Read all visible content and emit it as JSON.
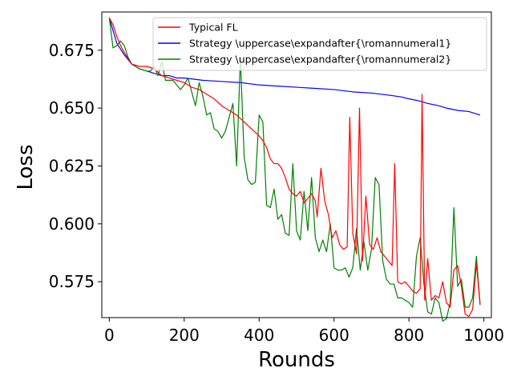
{
  "chart_data": {
    "type": "line",
    "xlabel": "Rounds",
    "ylabel": "Loss",
    "xlim": [
      -20,
      1020
    ],
    "ylim": [
      0.5595,
      0.6915
    ],
    "xticks": [
      0,
      200,
      400,
      600,
      800,
      1000
    ],
    "xtick_labels": [
      "0",
      "200",
      "400",
      "600",
      "800",
      "1000"
    ],
    "yticks": [
      0.575,
      0.6,
      0.625,
      0.65,
      0.675
    ],
    "ytick_labels": [
      "0.575",
      "0.600",
      "0.625",
      "0.650",
      "0.675"
    ],
    "grid": false,
    "legend_position": "top-right",
    "series": [
      {
        "name": "Typical FL",
        "color": "#ff0000",
        "points": [
          [
            0,
            0.689
          ],
          [
            10,
            0.686
          ],
          [
            20,
            0.681
          ],
          [
            30,
            0.677
          ],
          [
            40,
            0.674
          ],
          [
            60,
            0.669
          ],
          [
            80,
            0.668
          ],
          [
            100,
            0.668
          ],
          [
            120,
            0.667
          ],
          [
            140,
            0.664
          ],
          [
            160,
            0.663
          ],
          [
            180,
            0.662
          ],
          [
            200,
            0.661
          ],
          [
            220,
            0.659
          ],
          [
            240,
            0.658
          ],
          [
            260,
            0.656
          ],
          [
            280,
            0.654
          ],
          [
            300,
            0.651
          ],
          [
            320,
            0.649
          ],
          [
            340,
            0.647
          ],
          [
            360,
            0.644
          ],
          [
            380,
            0.641
          ],
          [
            400,
            0.638
          ],
          [
            410,
            0.636
          ],
          [
            420,
            0.633
          ],
          [
            430,
            0.628
          ],
          [
            440,
            0.626
          ],
          [
            450,
            0.626
          ],
          [
            460,
            0.624
          ],
          [
            470,
            0.62
          ],
          [
            480,
            0.615
          ],
          [
            490,
            0.613
          ],
          [
            500,
            0.612
          ],
          [
            510,
            0.614
          ],
          [
            520,
            0.609
          ],
          [
            530,
            0.611
          ],
          [
            540,
            0.613
          ],
          [
            550,
            0.61
          ],
          [
            555,
            0.603
          ],
          [
            565,
            0.624
          ],
          [
            575,
            0.61
          ],
          [
            585,
            0.604
          ],
          [
            595,
            0.594
          ],
          [
            605,
            0.597
          ],
          [
            615,
            0.591
          ],
          [
            625,
            0.589
          ],
          [
            635,
            0.59
          ],
          [
            642,
            0.646
          ],
          [
            650,
            0.596
          ],
          [
            660,
            0.587
          ],
          [
            668,
            0.65
          ],
          [
            676,
            0.584
          ],
          [
            685,
            0.612
          ],
          [
            695,
            0.591
          ],
          [
            705,
            0.589
          ],
          [
            715,
            0.594
          ],
          [
            725,
            0.588
          ],
          [
            735,
            0.586
          ],
          [
            745,
            0.584
          ],
          [
            755,
            0.582
          ],
          [
            762,
            0.626
          ],
          [
            770,
            0.575
          ],
          [
            780,
            0.574
          ],
          [
            790,
            0.575
          ],
          [
            800,
            0.573
          ],
          [
            810,
            0.571
          ],
          [
            820,
            0.57
          ],
          [
            830,
            0.572
          ],
          [
            835,
            0.656
          ],
          [
            842,
            0.567
          ],
          [
            850,
            0.585
          ],
          [
            860,
            0.567
          ],
          [
            870,
            0.569
          ],
          [
            880,
            0.568
          ],
          [
            890,
            0.575
          ],
          [
            900,
            0.566
          ],
          [
            910,
            0.564
          ],
          [
            920,
            0.58
          ],
          [
            930,
            0.582
          ],
          [
            940,
            0.573
          ],
          [
            950,
            0.561
          ],
          [
            960,
            0.56
          ],
          [
            970,
            0.563
          ],
          [
            980,
            0.583
          ],
          [
            990,
            0.565
          ]
        ]
      },
      {
        "name": "Strategy \\uppercase\\expandafter{\\romannumeral1}",
        "color": "#0000ff",
        "points": [
          [
            0,
            0.689
          ],
          [
            20,
            0.678
          ],
          [
            40,
            0.673
          ],
          [
            60,
            0.669
          ],
          [
            80,
            0.667
          ],
          [
            100,
            0.666
          ],
          [
            120,
            0.665
          ],
          [
            140,
            0.664
          ],
          [
            160,
            0.664
          ],
          [
            180,
            0.663
          ],
          [
            200,
            0.663
          ],
          [
            250,
            0.662
          ],
          [
            300,
            0.6615
          ],
          [
            350,
            0.661
          ],
          [
            400,
            0.66
          ],
          [
            450,
            0.6595
          ],
          [
            500,
            0.659
          ],
          [
            550,
            0.6585
          ],
          [
            600,
            0.658
          ],
          [
            650,
            0.657
          ],
          [
            700,
            0.6565
          ],
          [
            750,
            0.6555
          ],
          [
            780,
            0.6548
          ],
          [
            800,
            0.654
          ],
          [
            830,
            0.653
          ],
          [
            850,
            0.652
          ],
          [
            880,
            0.651
          ],
          [
            900,
            0.65
          ],
          [
            930,
            0.649
          ],
          [
            960,
            0.6485
          ],
          [
            990,
            0.647
          ]
        ]
      },
      {
        "name": "Strategy \\uppercase\\expandafter{\\romannumeral2}",
        "color": "#008000",
        "points": [
          [
            0,
            0.689
          ],
          [
            10,
            0.676
          ],
          [
            20,
            0.677
          ],
          [
            30,
            0.679
          ],
          [
            40,
            0.677
          ],
          [
            50,
            0.672
          ],
          [
            60,
            0.669
          ],
          [
            80,
            0.667
          ],
          [
            100,
            0.666
          ],
          [
            110,
            0.666
          ],
          [
            120,
            0.668
          ],
          [
            130,
            0.664
          ],
          [
            140,
            0.67
          ],
          [
            150,
            0.662
          ],
          [
            170,
            0.662
          ],
          [
            190,
            0.658
          ],
          [
            200,
            0.66
          ],
          [
            210,
            0.663
          ],
          [
            220,
            0.657
          ],
          [
            230,
            0.651
          ],
          [
            240,
            0.661
          ],
          [
            250,
            0.655
          ],
          [
            260,
            0.647
          ],
          [
            270,
            0.648
          ],
          [
            280,
            0.641
          ],
          [
            290,
            0.64
          ],
          [
            300,
            0.637
          ],
          [
            310,
            0.64
          ],
          [
            320,
            0.646
          ],
          [
            330,
            0.652
          ],
          [
            340,
            0.625
          ],
          [
            350,
            0.672
          ],
          [
            360,
            0.629
          ],
          [
            370,
            0.619
          ],
          [
            380,
            0.617
          ],
          [
            390,
            0.618
          ],
          [
            400,
            0.647
          ],
          [
            410,
            0.644
          ],
          [
            420,
            0.608
          ],
          [
            430,
            0.607
          ],
          [
            440,
            0.615
          ],
          [
            450,
            0.602
          ],
          [
            460,
            0.604
          ],
          [
            470,
            0.596
          ],
          [
            480,
            0.595
          ],
          [
            490,
            0.626
          ],
          [
            500,
            0.597
          ],
          [
            510,
            0.593
          ],
          [
            520,
            0.614
          ],
          [
            530,
            0.597
          ],
          [
            540,
            0.62
          ],
          [
            550,
            0.594
          ],
          [
            560,
            0.588
          ],
          [
            570,
            0.593
          ],
          [
            580,
            0.588
          ],
          [
            590,
            0.6
          ],
          [
            600,
            0.581
          ],
          [
            610,
            0.58
          ],
          [
            620,
            0.58
          ],
          [
            630,
            0.581
          ],
          [
            640,
            0.577
          ],
          [
            650,
            0.581
          ],
          [
            660,
            0.598
          ],
          [
            670,
            0.58
          ],
          [
            680,
            0.592
          ],
          [
            690,
            0.58
          ],
          [
            700,
            0.589
          ],
          [
            710,
            0.62
          ],
          [
            720,
            0.617
          ],
          [
            730,
            0.584
          ],
          [
            740,
            0.576
          ],
          [
            750,
            0.574
          ],
          [
            760,
            0.574
          ],
          [
            770,
            0.568
          ],
          [
            780,
            0.568
          ],
          [
            790,
            0.567
          ],
          [
            800,
            0.566
          ],
          [
            810,
            0.564
          ],
          [
            820,
            0.586
          ],
          [
            830,
            0.594
          ],
          [
            840,
            0.574
          ],
          [
            850,
            0.562
          ],
          [
            860,
            0.561
          ],
          [
            870,
            0.568
          ],
          [
            880,
            0.566
          ],
          [
            890,
            0.558
          ],
          [
            900,
            0.559
          ],
          [
            910,
            0.566
          ],
          [
            920,
            0.607
          ],
          [
            930,
            0.573
          ],
          [
            940,
            0.576
          ],
          [
            950,
            0.564
          ],
          [
            960,
            0.564
          ],
          [
            970,
            0.568
          ],
          [
            980,
            0.586
          ],
          [
            990,
            0.565
          ]
        ]
      }
    ]
  }
}
